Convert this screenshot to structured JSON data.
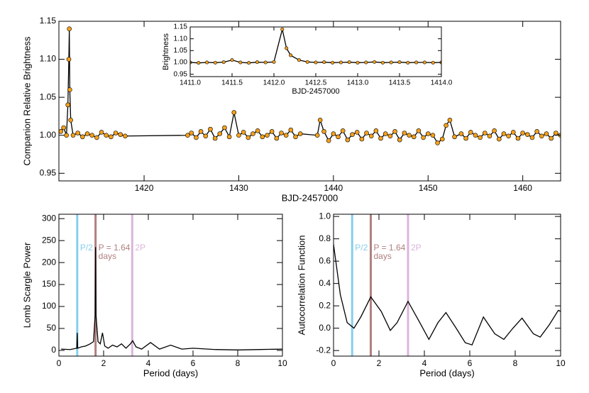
{
  "chart_data": [
    {
      "type": "line",
      "x_label": "BJD-2457000",
      "y_label": "Companion Relative Brightness",
      "xlim": [
        1411,
        1464
      ],
      "ylim": [
        0.94,
        1.15
      ],
      "xticks": [
        1420,
        1430,
        1440,
        1450,
        1460
      ],
      "yticks": [
        0.95,
        {
          "value": 1,
          "label": "1.00"
        },
        1.05,
        {
          "value": 1.1,
          "label": "1.10"
        },
        1.15
      ],
      "line_color": "#000000",
      "point_color": "#f5a01a",
      "x": [
        1411.2,
        1411.5,
        1411.8,
        1411.95,
        1412.05,
        1412.1,
        1412.15,
        1412.25,
        1412.5,
        1413,
        1413.5,
        1414,
        1414.5,
        1415,
        1415.5,
        1416,
        1416.5,
        1417,
        1417.5,
        1418,
        1424.6,
        1425,
        1425.5,
        1426,
        1426.5,
        1427,
        1427.5,
        1428,
        1428.5,
        1429,
        1429.5,
        1430,
        1430.5,
        1431,
        1431.5,
        1432,
        1432.5,
        1433,
        1433.5,
        1434,
        1434.5,
        1435,
        1435.5,
        1436,
        1436.5,
        1438.3,
        1438.6,
        1439,
        1439.5,
        1440,
        1440.5,
        1441,
        1441.5,
        1442,
        1442.5,
        1443,
        1443.5,
        1444,
        1444.5,
        1445,
        1445.5,
        1446,
        1446.5,
        1447,
        1447.5,
        1448,
        1448.5,
        1449,
        1449.5,
        1450,
        1450.5,
        1451,
        1451.5,
        1451.9,
        1452.3,
        1452.8,
        1453.5,
        1454,
        1454.5,
        1455,
        1455.5,
        1456,
        1456.5,
        1457,
        1457.5,
        1458,
        1458.5,
        1459,
        1459.5,
        1460,
        1460.5,
        1461,
        1461.5,
        1462,
        1462.5,
        1463,
        1463.5,
        1464
      ],
      "values": [
        1.005,
        1.01,
        1.0,
        1.04,
        1.1,
        1.14,
        1.06,
        1.02,
        1.0,
        1.003,
        0.998,
        1.002,
        1.0,
        0.997,
        1.004,
        1.0,
        0.998,
        1.003,
        1.001,
        0.999,
        1.0,
        1.003,
        0.997,
        1.005,
        0.999,
        1.008,
        0.996,
        1.002,
        1.01,
        0.998,
        1.03,
        1.0,
        1.004,
        0.997,
        1.002,
        1.006,
        0.998,
        1.0,
        1.005,
        0.996,
        1.003,
        1.0,
        1.007,
        0.998,
        1.002,
        1.0,
        1.02,
        1.005,
        0.993,
        1.002,
        0.998,
        1.006,
        0.994,
        1.001,
        1.004,
        0.995,
        1.003,
        0.999,
        1.006,
        0.996,
        1.002,
        0.999,
        1.005,
        0.994,
        1.003,
        1.0,
        0.998,
        1.006,
        0.997,
        1.002,
        1.0,
        0.99,
        0.995,
        1.013,
        1.02,
        0.998,
        1.002,
        0.996,
        1.004,
        1.0,
        0.997,
        1.003,
        0.999,
        1.006,
        0.995,
        1.002,
        0.999,
        1.004,
        0.996,
        1.003,
        1.001,
        0.997,
        1.005,
        0.999,
        1.002,
        0.996,
        1.003,
        1.0
      ]
    },
    {
      "type": "line",
      "x_label": "BJD-2457000",
      "y_label": "Brightness",
      "xlim": [
        1411,
        1414
      ],
      "ylim": [
        0.94,
        1.15
      ],
      "xticks": [
        {
          "value": 1411,
          "label": "1411.0"
        },
        1411.5,
        {
          "value": 1412,
          "label": "1412.0"
        },
        1412.5,
        {
          "value": 1413,
          "label": "1413.0"
        },
        1413.5,
        {
          "value": 1414,
          "label": "1414.0"
        }
      ],
      "yticks": [
        0.95,
        {
          "value": 1,
          "label": "1.00"
        },
        1.05,
        {
          "value": 1.1,
          "label": "1.10"
        },
        1.15
      ],
      "line_color": "#000000",
      "point_color": "#f5a01a",
      "x": [
        1411.0,
        1411.1,
        1411.2,
        1411.3,
        1411.4,
        1411.5,
        1411.6,
        1411.7,
        1411.8,
        1411.9,
        1412.0,
        1412.1,
        1412.15,
        1412.2,
        1412.3,
        1412.4,
        1412.5,
        1412.6,
        1412.7,
        1412.8,
        1412.9,
        1413.0,
        1413.1,
        1413.2,
        1413.3,
        1413.4,
        1413.5,
        1413.6,
        1413.7,
        1413.8,
        1413.9,
        1414.0
      ],
      "values": [
        1.0,
        0.998,
        1.0,
        0.999,
        1.001,
        1.01,
        1.0,
        0.998,
        1.001,
        1.0,
        1.002,
        1.14,
        1.06,
        1.03,
        1.01,
        1.002,
        1.0,
        1.001,
        0.999,
        1.0,
        1.001,
        0.999,
        1.0,
        1.002,
        0.999,
        1.0,
        1.001,
        0.999,
        1.0,
        1.0,
        0.999,
        1.0
      ]
    },
    {
      "type": "line",
      "x_label": "Period (days)",
      "y_label": "Lomb Scargle Power",
      "xlim": [
        0,
        10
      ],
      "ylim": [
        -13,
        310
      ],
      "xticks": [
        0,
        2,
        4,
        6,
        8,
        10
      ],
      "yticks": [
        0,
        50,
        100,
        150,
        200,
        250,
        300
      ],
      "line_color": "#000000",
      "x": [
        0.1,
        0.5,
        0.8,
        0.82,
        0.84,
        1.0,
        1.2,
        1.4,
        1.55,
        1.62,
        1.64,
        1.66,
        1.75,
        1.85,
        1.95,
        2.05,
        2.2,
        2.4,
        2.6,
        2.8,
        3.0,
        3.2,
        3.3,
        3.45,
        3.7,
        4.1,
        4.5,
        5.0,
        5.5,
        6.0,
        7.0,
        8.0,
        9.0,
        10.0
      ],
      "values": [
        3,
        2,
        5,
        40,
        5,
        8,
        10,
        15,
        20,
        80,
        235,
        80,
        20,
        15,
        40,
        10,
        5,
        12,
        8,
        15,
        5,
        15,
        22,
        8,
        3,
        18,
        3,
        12,
        3,
        5,
        2,
        1,
        2,
        3
      ],
      "markers": [
        {
          "label": "P/2",
          "x": 0.82,
          "color": "#87ceeb"
        },
        {
          "label": "P = 1.64",
          "sublabel": "days",
          "x": 1.64,
          "color": "#b07f7f"
        },
        {
          "label": "2P",
          "x": 3.28,
          "color": "#dbb5db"
        }
      ]
    },
    {
      "type": "line",
      "x_label": "Period (days)",
      "y_label": "Autocorrelation Function",
      "xlim": [
        0,
        10
      ],
      "ylim": [
        -0.25,
        1.02
      ],
      "xticks": [
        0,
        2,
        4,
        6,
        8,
        10
      ],
      "yticks": [
        -0.2,
        {
          "value": 0,
          "label": "0.0"
        },
        0.2,
        0.4,
        0.6,
        0.8,
        {
          "value": 1,
          "label": "1.0"
        }
      ],
      "line_color": "#000000",
      "x": [
        0,
        0.3,
        0.6,
        0.9,
        1.2,
        1.64,
        2.1,
        2.5,
        2.8,
        3.28,
        3.8,
        4.2,
        4.6,
        4.95,
        5.4,
        5.8,
        6.1,
        6.6,
        7.1,
        7.5,
        7.9,
        8.3,
        8.8,
        9.1,
        9.5,
        9.9,
        10
      ],
      "values": [
        0.75,
        0.3,
        0.05,
        0,
        0.1,
        0.28,
        0.15,
        -0.02,
        0.05,
        0.24,
        0.05,
        -0.1,
        0.05,
        0.14,
        0,
        -0.13,
        -0.15,
        0.1,
        -0.05,
        -0.1,
        0,
        0.09,
        -0.05,
        -0.08,
        0.03,
        0.16,
        0.15
      ],
      "markers": [
        {
          "label": "P/2",
          "x": 0.82,
          "color": "#87ceeb"
        },
        {
          "label": "P = 1.64",
          "sublabel": "days",
          "x": 1.64,
          "color": "#b07f7f"
        },
        {
          "label": "2P",
          "x": 3.28,
          "color": "#dbb5db"
        }
      ]
    }
  ]
}
